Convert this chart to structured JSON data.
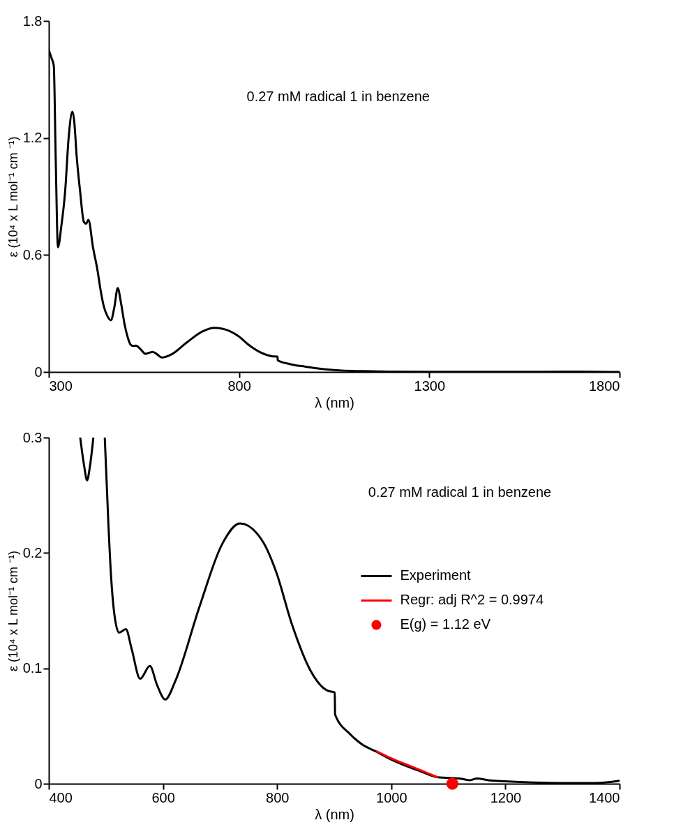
{
  "chart_data": [
    {
      "type": "line",
      "xlabel": "λ (nm)",
      "ylabel": "ε (10⁴ x L mol⁻¹ cm ⁻¹)",
      "annotations": [
        "0.27 mM radical 1 in benzene"
      ],
      "xlim": [
        300,
        1800
      ],
      "ylim": [
        0,
        1.8
      ],
      "xticks": [
        300,
        800,
        1300,
        1800
      ],
      "yticks": [
        0,
        0.6,
        1.2,
        1.8
      ],
      "grid": false,
      "legend": false,
      "marker": "none",
      "line_style": "solid",
      "series": [
        {
          "color": "#000000",
          "x": [
            300,
            307,
            313,
            318,
            324,
            333,
            343,
            352,
            362,
            367,
            373,
            382,
            392,
            398,
            404,
            416,
            428,
            436,
            444,
            453,
            463,
            472,
            481,
            490,
            499,
            507,
            515,
            522,
            529,
            541,
            554,
            563,
            573,
            585,
            597,
            622,
            663,
            704,
            735,
            776,
            798,
            826,
            859,
            881,
            889,
            901,
            901.5,
            928,
            949,
            973,
            1000,
            1050,
            1100,
            1150,
            1200,
            1300,
            1400,
            1500,
            1600,
            1700,
            1800
          ],
          "values": [
            1.65,
            1.61,
            1.57,
            1.1,
            0.64,
            0.75,
            0.93,
            1.2,
            1.335,
            1.28,
            1.11,
            0.93,
            0.77,
            0.76,
            0.78,
            0.64,
            0.52,
            0.42,
            0.34,
            0.29,
            0.265,
            0.33,
            0.43,
            0.35,
            0.245,
            0.18,
            0.14,
            0.133,
            0.135,
            0.117,
            0.093,
            0.098,
            0.103,
            0.09,
            0.074,
            0.09,
            0.152,
            0.208,
            0.226,
            0.209,
            0.184,
            0.138,
            0.098,
            0.083,
            0.08,
            0.079,
            0.06,
            0.043,
            0.034,
            0.028,
            0.02,
            0.01,
            0.005,
            0.004,
            0.002,
            0.001,
            0.001,
            0.001,
            0.001,
            0.002,
            0
          ]
        }
      ]
    },
    {
      "type": "line",
      "xlabel": "λ (nm)",
      "ylabel": "ε (10⁴ x L mol⁻¹ cm ⁻¹)",
      "annotations": [
        "0.27 mM radical 1 in benzene"
      ],
      "xlim": [
        400,
        1400
      ],
      "ylim": [
        0,
        0.3
      ],
      "xticks": [
        400,
        600,
        800,
        1000,
        1200,
        1400
      ],
      "yticks": [
        0,
        0.1,
        0.2,
        0.3
      ],
      "grid": false,
      "legend": "right",
      "line_style": "solid",
      "series": [
        {
          "name": "Experiment",
          "color": "#000000",
          "x": [
            455,
            462,
            467,
            472,
            478,
            488,
            498,
            504,
            509,
            514.5,
            523,
            535,
            545,
            560,
            577,
            590,
            604,
            622,
            663,
            704,
            735,
            776,
            798,
            826,
            859,
            881,
            889,
            901,
            901.5,
            928,
            949,
            973,
            1000,
            1050,
            1081,
            1110,
            1120,
            1138,
            1150,
            1170,
            1193,
            1250,
            1295,
            1357,
            1400
          ],
          "values": [
            0.3,
            0.275,
            0.263,
            0.275,
            0.3,
            null,
            0.3,
            0.229,
            0.18,
            0.148,
            0.131,
            0.134,
            0.117,
            0.091,
            0.102,
            0.085,
            0.073,
            0.0895,
            0.152,
            0.208,
            0.2256,
            0.209,
            0.184,
            0.138,
            0.0975,
            0.083,
            0.0805,
            0.079,
            0.06,
            0.043,
            0.034,
            0.028,
            0.021,
            0.011,
            0.0056,
            0.0048,
            0.0046,
            0.003,
            0.0046,
            0.003,
            0.0022,
            0.001,
            0.0006,
            0.0006,
            0.0026
          ]
        },
        {
          "name": "Regr: adj R^2 = 0.9974",
          "color": "#ff0000",
          "x": [
            975,
            1000,
            1030,
            1055,
            1081
          ],
          "values": [
            0.028,
            0.022,
            0.016,
            0.011,
            0.0056
          ]
        },
        {
          "name": "E(g) = 1.12 eV",
          "type": "scatter",
          "marker": "circle",
          "color": "#ff0000",
          "x": [
            1107
          ],
          "values": [
            0
          ]
        }
      ]
    }
  ]
}
